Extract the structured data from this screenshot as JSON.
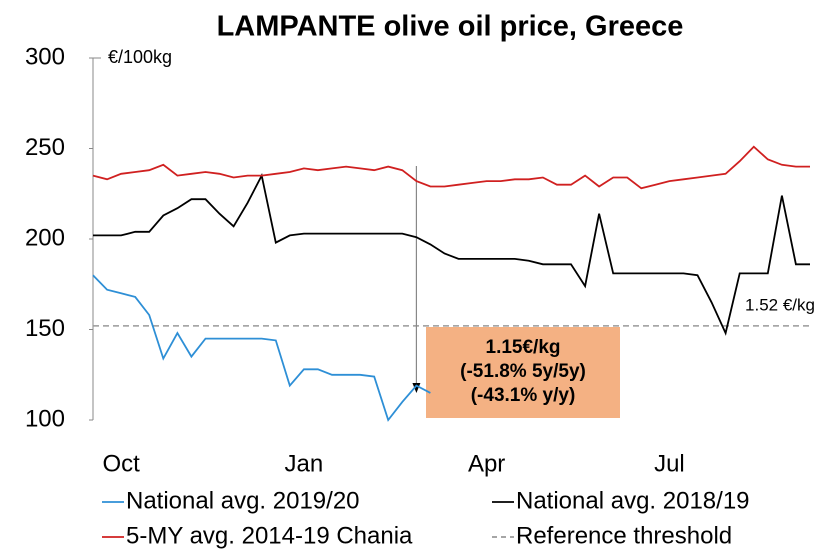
{
  "chart_data": {
    "type": "line",
    "title": "LAMPANTE olive oil price, Greece",
    "y_unit": "€/100kg",
    "categories": [
      null,
      null,
      "Oct",
      null,
      null,
      null,
      null,
      null,
      null,
      null,
      null,
      null,
      null,
      null,
      null,
      "Jan",
      null,
      null,
      null,
      null,
      null,
      null,
      null,
      null,
      null,
      null,
      null,
      null,
      "Apr",
      null,
      null,
      null,
      null,
      null,
      null,
      null,
      null,
      null,
      null,
      null,
      null,
      "Jul",
      null,
      null,
      null,
      null,
      null,
      null,
      null,
      null,
      null,
      null
    ],
    "ylim": [
      100,
      300
    ],
    "yticks": [
      100,
      150,
      200,
      250,
      300
    ],
    "series": [
      {
        "name": "National avg. 2019/20",
        "color": "#2e8fd6",
        "values": [
          180,
          172,
          170,
          168,
          158,
          134,
          148,
          135,
          145,
          145,
          145,
          145,
          145,
          144,
          119,
          128,
          128,
          125,
          125,
          125,
          124,
          100,
          110,
          119,
          115,
          null,
          null,
          null,
          null,
          null,
          null,
          null,
          null,
          null,
          null,
          null,
          null,
          null,
          null,
          null,
          null,
          null,
          null,
          null,
          null,
          null,
          null,
          null,
          null,
          null,
          null,
          null
        ]
      },
      {
        "name": "National avg. 2018/19",
        "color": "#000000",
        "values": [
          202,
          202,
          202,
          204,
          204,
          213,
          217,
          222,
          222,
          214,
          207,
          220,
          235,
          198,
          202,
          203,
          203,
          203,
          203,
          203,
          203,
          203,
          203,
          201,
          197,
          192,
          189,
          189,
          189,
          189,
          189,
          188,
          186,
          186,
          186,
          174,
          214,
          181,
          181,
          181,
          181,
          181,
          181,
          180,
          165,
          148,
          181,
          181,
          181,
          224,
          186,
          186
        ]
      },
      {
        "name": "5-MY avg. 2014-19 Chania",
        "color": "#d02020",
        "values": [
          235,
          233,
          236,
          237,
          238,
          241,
          235,
          236,
          237,
          236,
          234,
          235,
          235,
          236,
          237,
          239,
          238,
          239,
          240,
          239,
          238,
          240,
          238,
          232,
          229,
          229,
          230,
          231,
          232,
          232,
          233,
          233,
          234,
          230,
          230,
          235,
          229,
          234,
          234,
          228,
          230,
          232,
          233,
          234,
          235,
          236,
          243,
          251,
          244,
          241,
          240,
          240
        ]
      }
    ],
    "threshold": {
      "name": "Reference threshold",
      "value": 152,
      "label": "1.52 €/kg",
      "color": "#999999"
    },
    "annotation": {
      "lines": [
        "1.15€/kg",
        "(-51.8% 5y/5y)",
        "(-43.1% y/y)"
      ],
      "color": "#f4b183"
    }
  }
}
